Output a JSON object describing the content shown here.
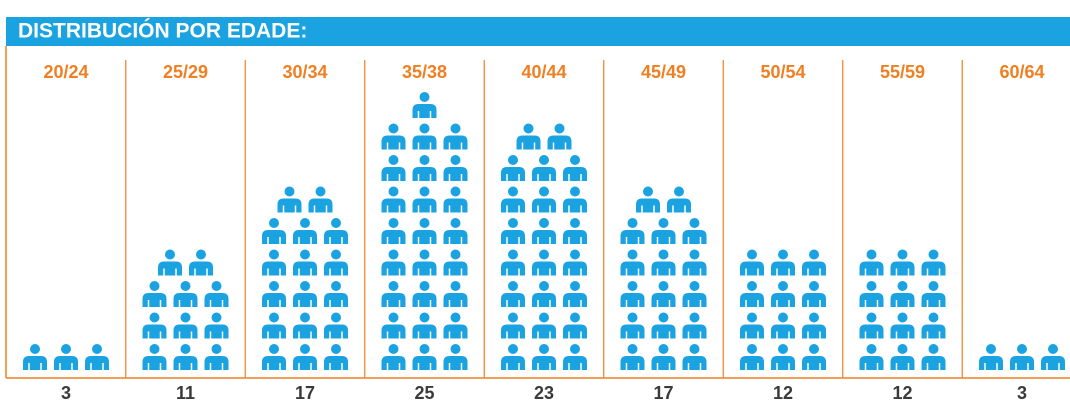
{
  "chart_data": {
    "type": "pictogram",
    "title": "DISTRIBUCIÓN POR EDADE:",
    "categories": [
      "20/24",
      "25/29",
      "30/34",
      "35/38",
      "40/44",
      "45/49",
      "50/54",
      "55/59",
      "60/64"
    ],
    "values": [
      3,
      11,
      17,
      25,
      23,
      17,
      12,
      12,
      3
    ],
    "color": "#1aa3e0",
    "label_color": "#f07f22",
    "per_row": 3
  }
}
